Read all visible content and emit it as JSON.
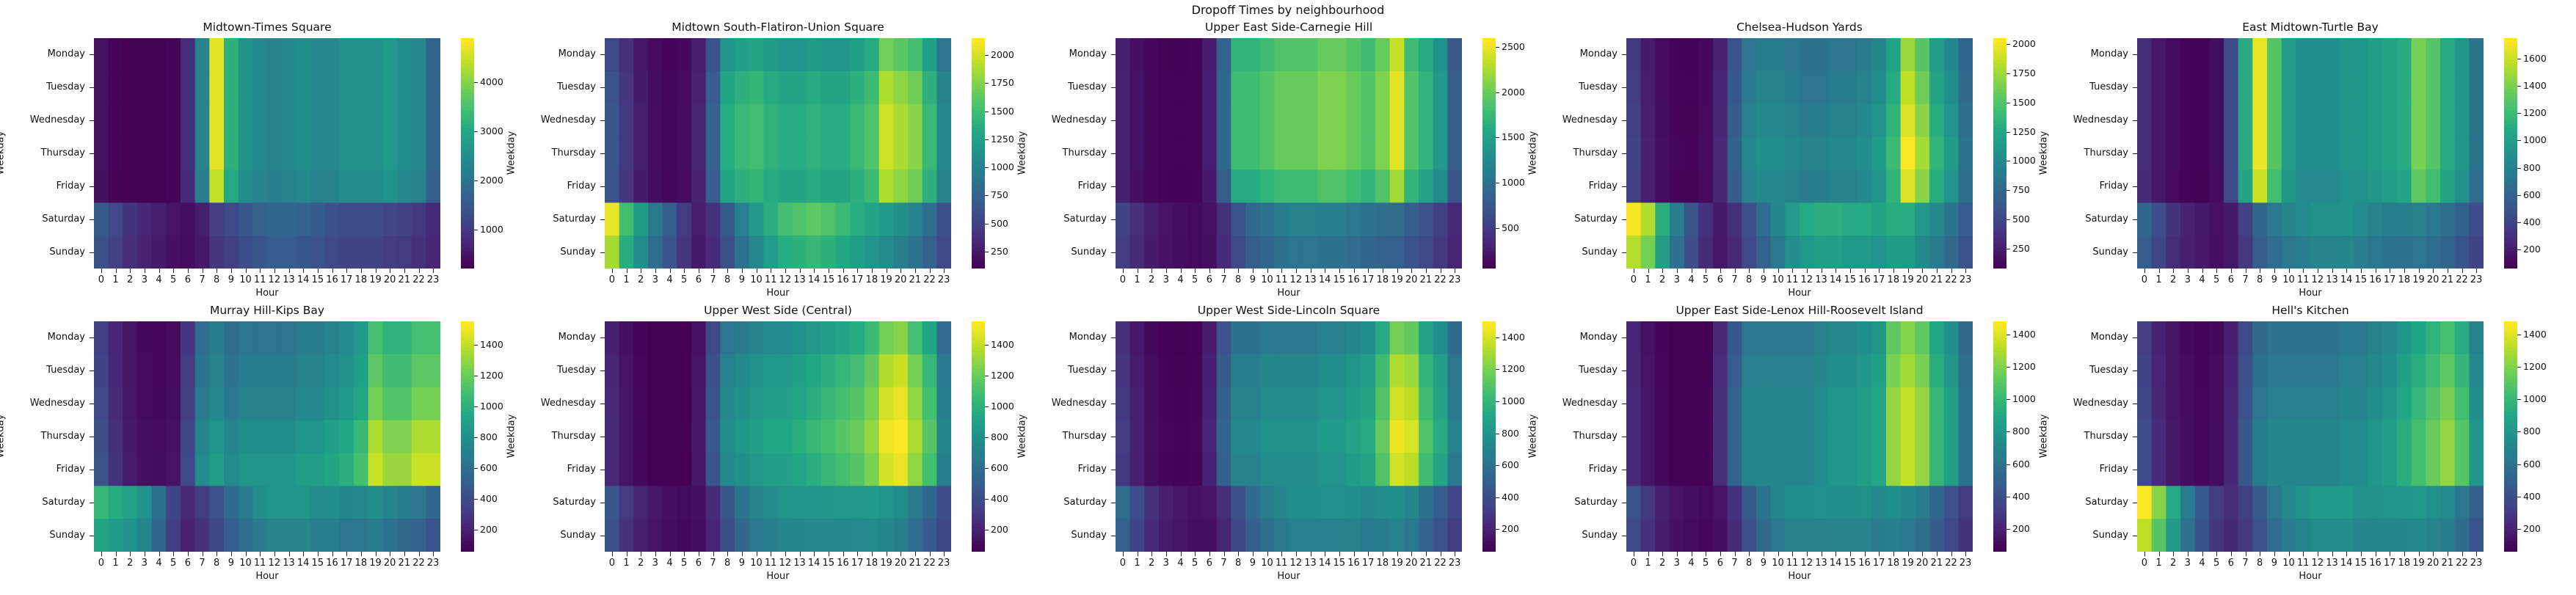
{
  "suptitle": "Dropoff Times by neighbourhood",
  "colormap": "viridis",
  "chart_data": [
    {
      "type": "heatmap",
      "title": "Midtown-Times Square",
      "xlabel": "Hour",
      "ylabel": "Weekday",
      "colorbar_ticks": [
        1000,
        2000,
        3000,
        4000
      ],
      "vmin": 200,
      "vmax": 4900,
      "profile": {
        "base": [
          420,
          260,
          180,
          140,
          130,
          250,
          800,
          2300,
          4700,
          3200,
          2600,
          2400,
          2300,
          2400,
          2500,
          2400,
          2400,
          2600,
          2600,
          2600,
          2700,
          2500,
          2400,
          1700
        ],
        "day": [
          1.0,
          1.0,
          1.0,
          1.0,
          0.95,
          0.45,
          0.38
        ],
        "wk": [
          1500,
          1200,
          900,
          700,
          600,
          420,
          320,
          420,
          750,
          1000,
          1300,
          1500,
          1600,
          1600,
          1500,
          1400,
          1200,
          1100,
          1100,
          1100,
          1000,
          950,
          800,
          650
        ]
      }
    },
    {
      "type": "heatmap",
      "title": "Midtown South-Flatiron-Union Square",
      "xlabel": "Hour",
      "ylabel": "Weekday",
      "colorbar_ticks": [
        250,
        500,
        750,
        1000,
        1250,
        1500,
        1750,
        2000
      ],
      "vmin": 100,
      "vmax": 2150,
      "profile": {
        "base": [
          620,
          420,
          250,
          170,
          140,
          160,
          300,
          700,
          1300,
          1400,
          1450,
          1350,
          1300,
          1300,
          1350,
          1300,
          1300,
          1400,
          1500,
          1900,
          1800,
          1700,
          1400,
          1000
        ],
        "day": [
          0.9,
          1.0,
          1.05,
          1.05,
          1.0,
          0.4,
          0.3
        ],
        "wk": [
          2050,
          1500,
          1200,
          900,
          700,
          450,
          250,
          350,
          600,
          900,
          1100,
          1300,
          1450,
          1500,
          1550,
          1500,
          1400,
          1300,
          1200,
          1100,
          1000,
          900,
          750,
          550
        ]
      }
    },
    {
      "type": "heatmap",
      "title": "Upper East Side-Carnegie Hill",
      "xlabel": "Hour",
      "ylabel": "Weekday",
      "colorbar_ticks": [
        500,
        1000,
        1500,
        2000,
        2500
      ],
      "vmin": 50,
      "vmax": 2600,
      "profile": {
        "base": [
          300,
          170,
          110,
          80,
          70,
          90,
          260,
          900,
          1800,
          1800,
          1900,
          2000,
          2000,
          2000,
          2100,
          2100,
          2000,
          1900,
          2100,
          2500,
          1900,
          1700,
          1400,
          800
        ],
        "day": [
          0.95,
          1.0,
          1.0,
          1.0,
          0.9,
          0.38,
          0.3
        ],
        "wk": [
          550,
          380,
          250,
          180,
          150,
          120,
          150,
          350,
          600,
          800,
          900,
          1000,
          1050,
          1050,
          1000,
          1000,
          950,
          900,
          850,
          800,
          700,
          600,
          450,
          300
        ]
      }
    },
    {
      "type": "heatmap",
      "title": "Chelsea-Hudson Yards",
      "xlabel": "Hour",
      "ylabel": "Weekday",
      "colorbar_ticks": [
        250,
        500,
        750,
        1000,
        1250,
        1500,
        1750,
        2000
      ],
      "vmin": 80,
      "vmax": 2050,
      "profile": {
        "base": [
          450,
          250,
          150,
          110,
          100,
          130,
          300,
          650,
          950,
          1000,
          1000,
          950,
          900,
          900,
          950,
          950,
          1000,
          1100,
          1350,
          1950,
          1700,
          1300,
          1100,
          800
        ],
        "day": [
          0.9,
          0.95,
          1.0,
          1.05,
          1.0,
          0.5,
          0.4
        ],
        "wk": [
          2000,
          1800,
          1300,
          900,
          600,
          350,
          200,
          300,
          500,
          700,
          900,
          1100,
          1200,
          1250,
          1250,
          1200,
          1200,
          1150,
          1200,
          1150,
          1000,
          900,
          750,
          600
        ]
      }
    },
    {
      "type": "heatmap",
      "title": "East Midtown-Turtle Bay",
      "xlabel": "Hour",
      "ylabel": "Weekday",
      "colorbar_ticks": [
        200,
        400,
        600,
        800,
        1000,
        1200,
        1400,
        1600
      ],
      "vmin": 60,
      "vmax": 1750,
      "profile": {
        "base": [
          280,
          170,
          110,
          80,
          70,
          120,
          450,
          1100,
          1700,
          1300,
          1000,
          900,
          900,
          900,
          950,
          950,
          1000,
          1050,
          1100,
          1400,
          1300,
          1100,
          950,
          700
        ],
        "day": [
          1.0,
          1.0,
          1.0,
          1.0,
          0.95,
          0.45,
          0.4
        ],
        "wk": [
          600,
          450,
          300,
          220,
          180,
          130,
          150,
          300,
          500,
          650,
          750,
          800,
          850,
          850,
          850,
          800,
          750,
          700,
          700,
          700,
          650,
          600,
          500,
          400
        ]
      }
    },
    {
      "type": "heatmap",
      "title": "Murray Hill-Kips Bay",
      "xlabel": "Hour",
      "ylabel": "Weekday",
      "colorbar_ticks": [
        200,
        400,
        600,
        800,
        1000,
        1200,
        1400
      ],
      "vmin": 60,
      "vmax": 1550,
      "profile": {
        "base": [
          400,
          250,
          160,
          110,
          100,
          120,
          350,
          700,
          800,
          700,
          750,
          750,
          750,
          750,
          800,
          800,
          850,
          900,
          1000,
          1300,
          1200,
          1200,
          1300,
          1300
        ],
        "day": [
          0.85,
          0.9,
          0.95,
          1.05,
          1.1,
          0.7,
          0.45
        ],
        "wk": [
          1000,
          950,
          900,
          800,
          600,
          350,
          200,
          250,
          350,
          500,
          600,
          700,
          750,
          750,
          750,
          700,
          700,
          650,
          650,
          650,
          600,
          550,
          500,
          400
        ]
      }
    },
    {
      "type": "heatmap",
      "title": "Upper West Side (Central)",
      "xlabel": "Hour",
      "ylabel": "Weekday",
      "colorbar_ticks": [
        200,
        400,
        600,
        800,
        1000,
        1200,
        1400
      ],
      "vmin": 60,
      "vmax": 1550,
      "profile": {
        "base": [
          230,
          140,
          90,
          60,
          50,
          60,
          150,
          450,
          750,
          800,
          850,
          900,
          900,
          950,
          1000,
          1050,
          1100,
          1150,
          1250,
          1450,
          1500,
          1300,
          1100,
          700
        ],
        "day": [
          0.85,
          0.95,
          1.0,
          1.05,
          1.0,
          0.6,
          0.5
        ],
        "wk": [
          450,
          300,
          200,
          150,
          120,
          100,
          110,
          200,
          400,
          550,
          650,
          700,
          750,
          750,
          750,
          750,
          750,
          750,
          750,
          700,
          650,
          550,
          450,
          350
        ]
      }
    },
    {
      "type": "heatmap",
      "title": "Upper West Side-Lincoln Square",
      "xlabel": "Hour",
      "ylabel": "Weekday",
      "colorbar_ticks": [
        200,
        400,
        600,
        800,
        1000,
        1200,
        1400
      ],
      "vmin": 60,
      "vmax": 1500,
      "profile": {
        "base": [
          300,
          180,
          110,
          80,
          70,
          80,
          200,
          500,
          700,
          700,
          750,
          750,
          750,
          750,
          800,
          800,
          850,
          900,
          1100,
          1400,
          1350,
          1050,
          900,
          650
        ],
        "day": [
          0.85,
          0.95,
          1.0,
          1.05,
          1.0,
          0.6,
          0.45
        ],
        "wk": [
          550,
          380,
          250,
          180,
          150,
          120,
          120,
          200,
          350,
          500,
          600,
          650,
          700,
          700,
          700,
          700,
          700,
          650,
          650,
          650,
          600,
          500,
          400,
          300
        ]
      }
    },
    {
      "type": "heatmap",
      "title": "Upper East Side-Lenox Hill-Roosevelt Island",
      "xlabel": "Hour",
      "ylabel": "Weekday",
      "colorbar_ticks": [
        200,
        400,
        600,
        800,
        1000,
        1200,
        1400
      ],
      "vmin": 60,
      "vmax": 1480,
      "profile": {
        "base": [
          230,
          140,
          90,
          60,
          50,
          60,
          250,
          500,
          700,
          700,
          700,
          700,
          700,
          750,
          800,
          800,
          850,
          900,
          1250,
          1350,
          1250,
          1000,
          850,
          600
        ],
        "day": [
          0.9,
          0.95,
          1.0,
          1.0,
          1.0,
          0.55,
          0.45
        ],
        "wk": [
          400,
          280,
          180,
          130,
          110,
          90,
          110,
          220,
          400,
          550,
          650,
          700,
          700,
          700,
          700,
          700,
          700,
          650,
          650,
          600,
          550,
          450,
          350,
          260
        ]
      }
    },
    {
      "type": "heatmap",
      "title": "Hell's Kitchen",
      "xlabel": "Hour",
      "ylabel": "Weekday",
      "colorbar_ticks": [
        200,
        400,
        600,
        800,
        1000,
        1200,
        1400
      ],
      "vmin": 60,
      "vmax": 1480,
      "profile": {
        "base": [
          380,
          230,
          150,
          110,
          90,
          110,
          220,
          450,
          650,
          700,
          700,
          700,
          700,
          700,
          750,
          750,
          800,
          850,
          950,
          1050,
          1150,
          1250,
          1100,
          800
        ],
        "day": [
          0.85,
          0.9,
          0.95,
          1.0,
          1.0,
          0.7,
          0.6
        ],
        "wk": [
          1450,
          1200,
          900,
          650,
          450,
          300,
          220,
          280,
          400,
          550,
          650,
          700,
          750,
          750,
          750,
          700,
          700,
          700,
          700,
          700,
          650,
          600,
          500,
          400
        ]
      }
    }
  ],
  "weekdays": [
    "Monday",
    "Tuesday",
    "Wednesday",
    "Thursday",
    "Friday",
    "Saturday",
    "Sunday"
  ],
  "hours": [
    "0",
    "1",
    "2",
    "3",
    "4",
    "5",
    "6",
    "7",
    "8",
    "9",
    "10",
    "11",
    "12",
    "13",
    "14",
    "15",
    "16",
    "17",
    "18",
    "19",
    "20",
    "21",
    "22",
    "23"
  ]
}
